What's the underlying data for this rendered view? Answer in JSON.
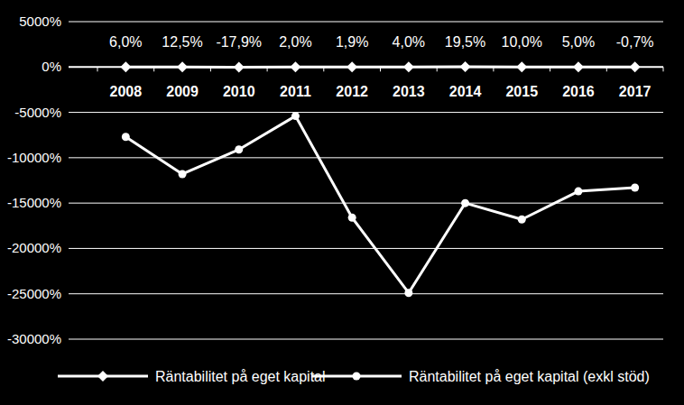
{
  "chart_data": {
    "type": "line",
    "categories": [
      "2008",
      "2009",
      "2010",
      "2011",
      "2012",
      "2013",
      "2014",
      "2015",
      "2016",
      "2017"
    ],
    "series": [
      {
        "name": "Räntabilitet på eget kapital",
        "color": "#ffffff",
        "marker": "diamond",
        "data_labels": true,
        "values": [
          6.0,
          12.5,
          -17.9,
          2.0,
          1.9,
          4.0,
          19.5,
          10.0,
          5.0,
          -0.7
        ],
        "value_labels": [
          "6,0%",
          "12,5%",
          "-17,9%",
          "2,0%",
          "1,9%",
          "4,0%",
          "19,5%",
          "10,0%",
          "5,0%",
          "-0,7%"
        ]
      },
      {
        "name": "Räntabilitet på eget kapital (exkl stöd)",
        "color": "#ffffff",
        "marker": "circle",
        "values": [
          -7700,
          -11800,
          -9100,
          -5400,
          -16600,
          -24900,
          -15000,
          -16800,
          -13700,
          -13300
        ]
      }
    ],
    "ylim": [
      -30000,
      5000
    ],
    "yticks": [
      {
        "value": 5000,
        "label": "5000%"
      },
      {
        "value": 0,
        "label": "0%"
      },
      {
        "value": -5000,
        "label": "-5000%"
      },
      {
        "value": -10000,
        "label": "-10000%"
      },
      {
        "value": -15000,
        "label": "-15000%"
      },
      {
        "value": -20000,
        "label": "-20000%"
      },
      {
        "value": -25000,
        "label": "-25000%"
      },
      {
        "value": -30000,
        "label": "-30000%"
      }
    ],
    "grid": true,
    "legend": "bottom"
  }
}
